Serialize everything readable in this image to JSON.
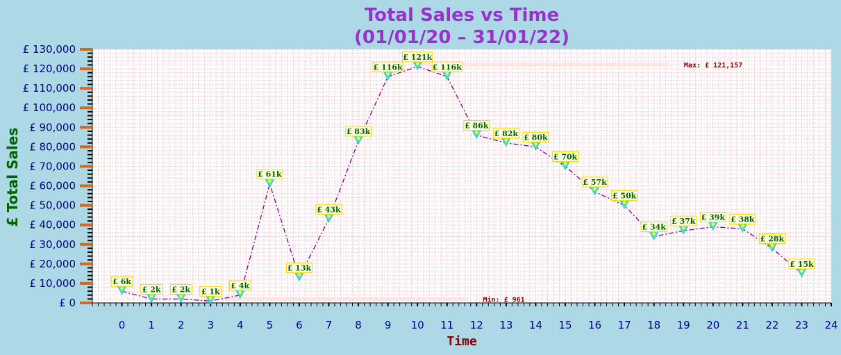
{
  "chart_data": {
    "type": "line",
    "title_lines": [
      "Total Sales vs Time",
      "(01/01/20 – 31/01/22)"
    ],
    "xlabel": "Time",
    "ylabel": "£ Total Sales",
    "xlim": [
      -1,
      24
    ],
    "x_ticks": [
      0,
      1,
      2,
      3,
      4,
      5,
      6,
      7,
      8,
      9,
      10,
      11,
      12,
      13,
      14,
      15,
      16,
      17,
      18,
      19,
      20,
      21,
      22,
      23,
      24
    ],
    "ylim": [
      0,
      130000
    ],
    "y_ticks": [
      0,
      10000,
      20000,
      30000,
      40000,
      50000,
      60000,
      70000,
      80000,
      90000,
      100000,
      110000,
      120000,
      130000
    ],
    "y_tick_labels": [
      "£ 0",
      "£ 10,000",
      "£ 20,000",
      "£ 30,000",
      "£ 40,000",
      "£ 50,000",
      "£ 60,000",
      "£ 70,000",
      "£ 80,000",
      "£ 90,000",
      "£ 100,000",
      "£ 110,000",
      "£ 120,000",
      "£ 130,000"
    ],
    "grid": true,
    "series": [
      {
        "x": [
          0,
          1,
          2,
          3,
          4,
          5,
          6,
          7,
          8,
          9,
          10,
          11,
          12,
          13,
          14,
          15,
          16,
          17,
          18,
          19,
          20,
          21,
          22,
          23
        ],
        "values": [
          6000,
          2000,
          2000,
          961,
          4000,
          61000,
          13000,
          43000,
          83000,
          116000,
          121157,
          116000,
          86000,
          82000,
          80000,
          70000,
          57000,
          50000,
          34000,
          37000,
          39000,
          38000,
          28000,
          15000
        ],
        "labels": [
          "£ 6k",
          "£ 2k",
          "£ 2k",
          "£ 1k",
          "£ 4k",
          "£ 61k",
          "£ 13k",
          "£ 43k",
          "£ 83k",
          "£ 116k",
          "£ 121k",
          "£ 116k",
          "£ 86k",
          "£ 82k",
          "£ 80k",
          "£ 70k",
          "£ 57k",
          "£ 50k",
          "£ 34k",
          "£ 37k",
          "£ 39k",
          "£ 38k",
          "£ 28k",
          "£ 15k"
        ],
        "color": "#800080",
        "marker_color": "#40e0d0",
        "marker_center": "#ffff00"
      }
    ],
    "annotations": [
      {
        "text": "Max: £ 121,157",
        "y": 121157,
        "x_from": 10,
        "x_to": 18.5
      },
      {
        "text": "Min: £ 961",
        "y": 961,
        "x_from": 3.5,
        "x_to": 11.7
      }
    ],
    "colors": {
      "background": "#add8e6",
      "plot_bg": "#ffffff",
      "grid": "#ffc0cb",
      "tick_mark": "#d2691e",
      "axis_text": "#00008b",
      "label_box_fill": "#ffffe0",
      "label_box_stroke": "#ffd700"
    }
  }
}
